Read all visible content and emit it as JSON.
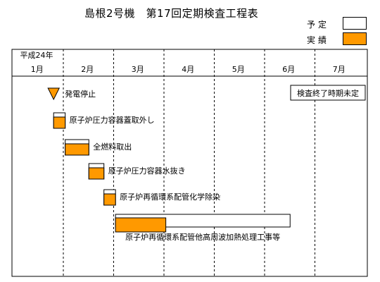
{
  "title": "島根2号機　第17回定期検査工程表",
  "legend": {
    "planned_label": "予定",
    "actual_label": "実績",
    "planned_color": "#ffffff",
    "actual_color": "#ff9900"
  },
  "chart_data": {
    "type": "gantt",
    "year_label": "平成24年",
    "months": [
      "1月",
      "2月",
      "3月",
      "4月",
      "5月",
      "6月",
      "7月"
    ],
    "milestone": {
      "label": "発電停止",
      "date": "1月下旬",
      "color": "#ff9900"
    },
    "note": "検査終了時期未定",
    "tasks": [
      {
        "label": "原子炉圧力容器蓋取外し",
        "planned": [
          "1月下旬",
          "2月初旬"
        ],
        "actual": [
          "1月下旬",
          "2月初旬"
        ]
      },
      {
        "label": "全燃料取出",
        "planned": [
          "2月初旬",
          "2月中旬"
        ],
        "actual": [
          "2月初旬",
          "2月中旬"
        ]
      },
      {
        "label": "原子炉圧力容器水抜き",
        "planned": [
          "2月中旬",
          "2月下旬"
        ],
        "actual": [
          "2月中旬",
          "2月下旬"
        ]
      },
      {
        "label": "原子炉再循環系配管化学除染",
        "planned": [
          "2月下旬",
          "3月初旬"
        ],
        "actual": [
          "2月下旬",
          "3月初旬"
        ]
      },
      {
        "label": "原子炉再循環系配管他高周波加熱処理工事等",
        "planned": [
          "3月初旬",
          "6月中旬"
        ],
        "actual": [
          "3月初旬",
          "4月初旬"
        ]
      }
    ]
  }
}
